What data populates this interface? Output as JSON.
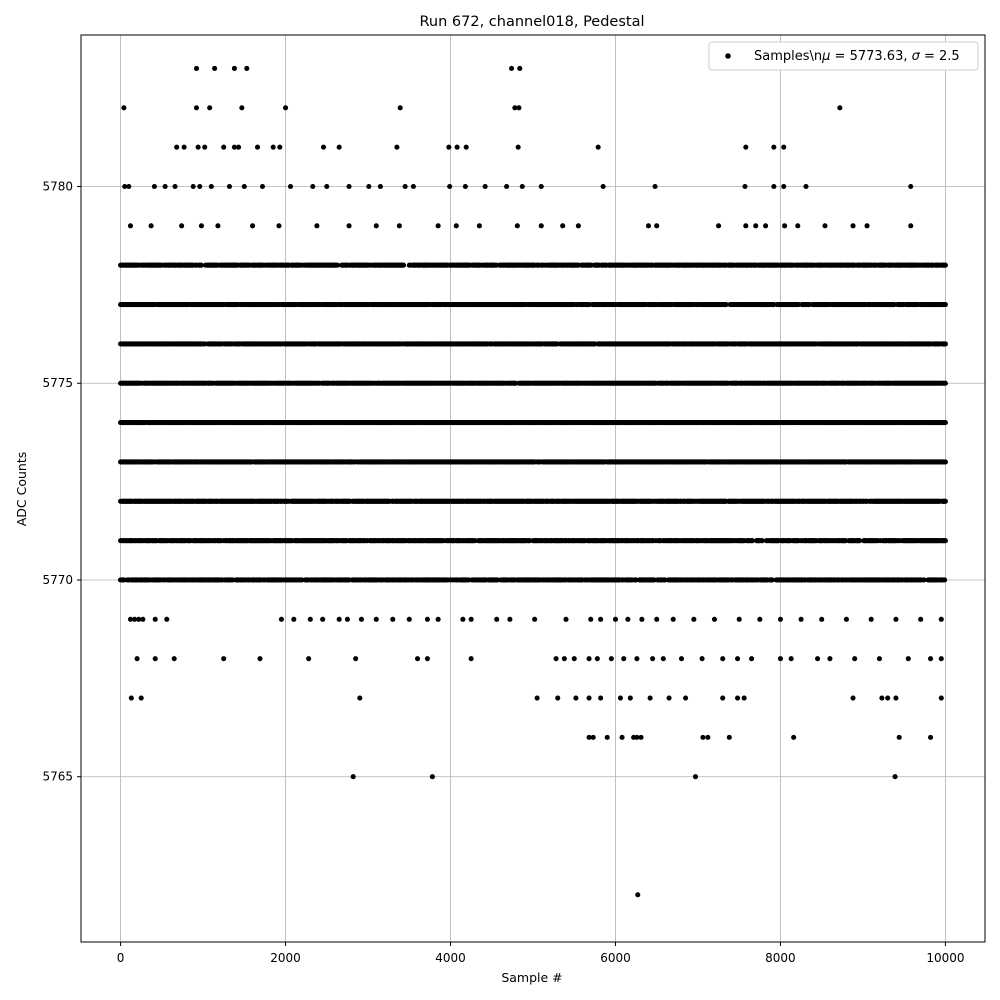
{
  "chart_data": {
    "type": "scatter",
    "title": "Run 672, channel018, Pedestal",
    "xlabel": "Sample #",
    "ylabel": "ADC Counts",
    "xlim": [
      -480,
      10480
    ],
    "ylim": [
      5760.8,
      5783.85
    ],
    "xticks": [
      0,
      2000,
      4000,
      6000,
      8000,
      10000
    ],
    "yticks": [
      5765,
      5770,
      5775,
      5780
    ],
    "grid": true,
    "legend_position": "top-right",
    "marker_color": "#000000",
    "series": [
      {
        "name": "Samples\\n$\\mu$ = 5773.63, $\\sigma$ = 2.5",
        "legend_label_prefix": "Samples\\n",
        "legend_label_suffix": " = 5773.63, ",
        "legend_label_sigma_suffix": " = 2.5",
        "mu": 5773.63,
        "sigma": 2.5,
        "sample_count": 10000,
        "level_coverage": {
          "x_start": 0,
          "x_end": 10000,
          "dense_levels": [
            5770,
            5771,
            5772,
            5773,
            5774,
            5775,
            5776,
            5777,
            5778
          ]
        },
        "points": [
          [
            40,
            5782
          ],
          [
            920,
            5783
          ],
          [
            1140,
            5783
          ],
          [
            1380,
            5783
          ],
          [
            1530,
            5783
          ],
          [
            920,
            5782
          ],
          [
            1080,
            5782
          ],
          [
            1470,
            5782
          ],
          [
            2000,
            5782
          ],
          [
            3390,
            5782
          ],
          [
            4740,
            5783
          ],
          [
            4840,
            5783
          ],
          [
            4780,
            5782
          ],
          [
            4830,
            5782
          ],
          [
            8720,
            5782
          ],
          [
            680,
            5781
          ],
          [
            770,
            5781
          ],
          [
            940,
            5781
          ],
          [
            1020,
            5781
          ],
          [
            1250,
            5781
          ],
          [
            1380,
            5781
          ],
          [
            1430,
            5781
          ],
          [
            1660,
            5781
          ],
          [
            1850,
            5781
          ],
          [
            1930,
            5781
          ],
          [
            2460,
            5781
          ],
          [
            2650,
            5781
          ],
          [
            3350,
            5781
          ],
          [
            3980,
            5781
          ],
          [
            4080,
            5781
          ],
          [
            4190,
            5781
          ],
          [
            4820,
            5781
          ],
          [
            5790,
            5781
          ],
          [
            7580,
            5781
          ],
          [
            7920,
            5781
          ],
          [
            8040,
            5781
          ],
          [
            50,
            5780
          ],
          [
            100,
            5780
          ],
          [
            410,
            5780
          ],
          [
            540,
            5780
          ],
          [
            660,
            5780
          ],
          [
            880,
            5780
          ],
          [
            960,
            5780
          ],
          [
            1100,
            5780
          ],
          [
            1320,
            5780
          ],
          [
            1500,
            5780
          ],
          [
            1720,
            5780
          ],
          [
            2060,
            5780
          ],
          [
            2330,
            5780
          ],
          [
            2500,
            5780
          ],
          [
            2770,
            5780
          ],
          [
            3010,
            5780
          ],
          [
            3150,
            5780
          ],
          [
            3450,
            5780
          ],
          [
            3550,
            5780
          ],
          [
            3990,
            5780
          ],
          [
            4180,
            5780
          ],
          [
            4420,
            5780
          ],
          [
            4680,
            5780
          ],
          [
            4870,
            5780
          ],
          [
            5100,
            5780
          ],
          [
            5850,
            5780
          ],
          [
            6480,
            5780
          ],
          [
            7570,
            5780
          ],
          [
            7920,
            5780
          ],
          [
            8040,
            5780
          ],
          [
            8310,
            5780
          ],
          [
            9580,
            5780
          ],
          [
            120,
            5779
          ],
          [
            370,
            5779
          ],
          [
            740,
            5779
          ],
          [
            980,
            5779
          ],
          [
            1180,
            5779
          ],
          [
            1600,
            5779
          ],
          [
            1920,
            5779
          ],
          [
            2380,
            5779
          ],
          [
            2770,
            5779
          ],
          [
            3100,
            5779
          ],
          [
            3380,
            5779
          ],
          [
            3850,
            5779
          ],
          [
            4070,
            5779
          ],
          [
            4350,
            5779
          ],
          [
            4810,
            5779
          ],
          [
            5100,
            5779
          ],
          [
            5360,
            5779
          ],
          [
            5550,
            5779
          ],
          [
            6400,
            5779
          ],
          [
            6500,
            5779
          ],
          [
            7250,
            5779
          ],
          [
            7580,
            5779
          ],
          [
            7700,
            5779
          ],
          [
            7820,
            5779
          ],
          [
            8050,
            5779
          ],
          [
            8210,
            5779
          ],
          [
            8540,
            5779
          ],
          [
            8880,
            5779
          ],
          [
            9050,
            5779
          ],
          [
            9580,
            5779
          ],
          [
            120,
            5769
          ],
          [
            170,
            5769
          ],
          [
            220,
            5769
          ],
          [
            270,
            5769
          ],
          [
            420,
            5769
          ],
          [
            560,
            5769
          ],
          [
            1950,
            5769
          ],
          [
            2100,
            5769
          ],
          [
            2300,
            5769
          ],
          [
            2450,
            5769
          ],
          [
            2650,
            5769
          ],
          [
            2750,
            5769
          ],
          [
            2920,
            5769
          ],
          [
            3100,
            5769
          ],
          [
            3300,
            5769
          ],
          [
            3500,
            5769
          ],
          [
            3720,
            5769
          ],
          [
            3850,
            5769
          ],
          [
            4150,
            5769
          ],
          [
            4250,
            5769
          ],
          [
            4560,
            5769
          ],
          [
            4720,
            5769
          ],
          [
            5020,
            5769
          ],
          [
            5400,
            5769
          ],
          [
            5700,
            5769
          ],
          [
            5820,
            5769
          ],
          [
            6000,
            5769
          ],
          [
            6150,
            5769
          ],
          [
            6320,
            5769
          ],
          [
            6500,
            5769
          ],
          [
            6700,
            5769
          ],
          [
            6950,
            5769
          ],
          [
            7200,
            5769
          ],
          [
            7500,
            5769
          ],
          [
            7750,
            5769
          ],
          [
            8000,
            5769
          ],
          [
            8250,
            5769
          ],
          [
            8500,
            5769
          ],
          [
            8800,
            5769
          ],
          [
            9100,
            5769
          ],
          [
            9400,
            5769
          ],
          [
            9700,
            5769
          ],
          [
            9950,
            5769
          ],
          [
            200,
            5768
          ],
          [
            420,
            5768
          ],
          [
            650,
            5768
          ],
          [
            1250,
            5768
          ],
          [
            1690,
            5768
          ],
          [
            2280,
            5768
          ],
          [
            2850,
            5768
          ],
          [
            3600,
            5768
          ],
          [
            3720,
            5768
          ],
          [
            4250,
            5768
          ],
          [
            5280,
            5768
          ],
          [
            5380,
            5768
          ],
          [
            5500,
            5768
          ],
          [
            5680,
            5768
          ],
          [
            5780,
            5768
          ],
          [
            5950,
            5768
          ],
          [
            6100,
            5768
          ],
          [
            6260,
            5768
          ],
          [
            6450,
            5768
          ],
          [
            6580,
            5768
          ],
          [
            6800,
            5768
          ],
          [
            7050,
            5768
          ],
          [
            7300,
            5768
          ],
          [
            7480,
            5768
          ],
          [
            7650,
            5768
          ],
          [
            8000,
            5768
          ],
          [
            8130,
            5768
          ],
          [
            8450,
            5768
          ],
          [
            8600,
            5768
          ],
          [
            8900,
            5768
          ],
          [
            9200,
            5768
          ],
          [
            9550,
            5768
          ],
          [
            9820,
            5768
          ],
          [
            9950,
            5768
          ],
          [
            130,
            5767
          ],
          [
            250,
            5767
          ],
          [
            2900,
            5767
          ],
          [
            5050,
            5767
          ],
          [
            5300,
            5767
          ],
          [
            5520,
            5767
          ],
          [
            5680,
            5767
          ],
          [
            5820,
            5767
          ],
          [
            6060,
            5767
          ],
          [
            6180,
            5767
          ],
          [
            6420,
            5767
          ],
          [
            6650,
            5767
          ],
          [
            6850,
            5767
          ],
          [
            7300,
            5767
          ],
          [
            7480,
            5767
          ],
          [
            7560,
            5767
          ],
          [
            8880,
            5767
          ],
          [
            9230,
            5767
          ],
          [
            9300,
            5767
          ],
          [
            9400,
            5767
          ],
          [
            9950,
            5767
          ],
          [
            5680,
            5766
          ],
          [
            5730,
            5766
          ],
          [
            5900,
            5766
          ],
          [
            6080,
            5766
          ],
          [
            6220,
            5766
          ],
          [
            6260,
            5766
          ],
          [
            6310,
            5766
          ],
          [
            7060,
            5766
          ],
          [
            7120,
            5766
          ],
          [
            7380,
            5766
          ],
          [
            8160,
            5766
          ],
          [
            9440,
            5766
          ],
          [
            9820,
            5766
          ],
          [
            2820,
            5765
          ],
          [
            3780,
            5765
          ],
          [
            6970,
            5765
          ],
          [
            9390,
            5765
          ],
          [
            6270,
            5762
          ]
        ]
      }
    ]
  }
}
